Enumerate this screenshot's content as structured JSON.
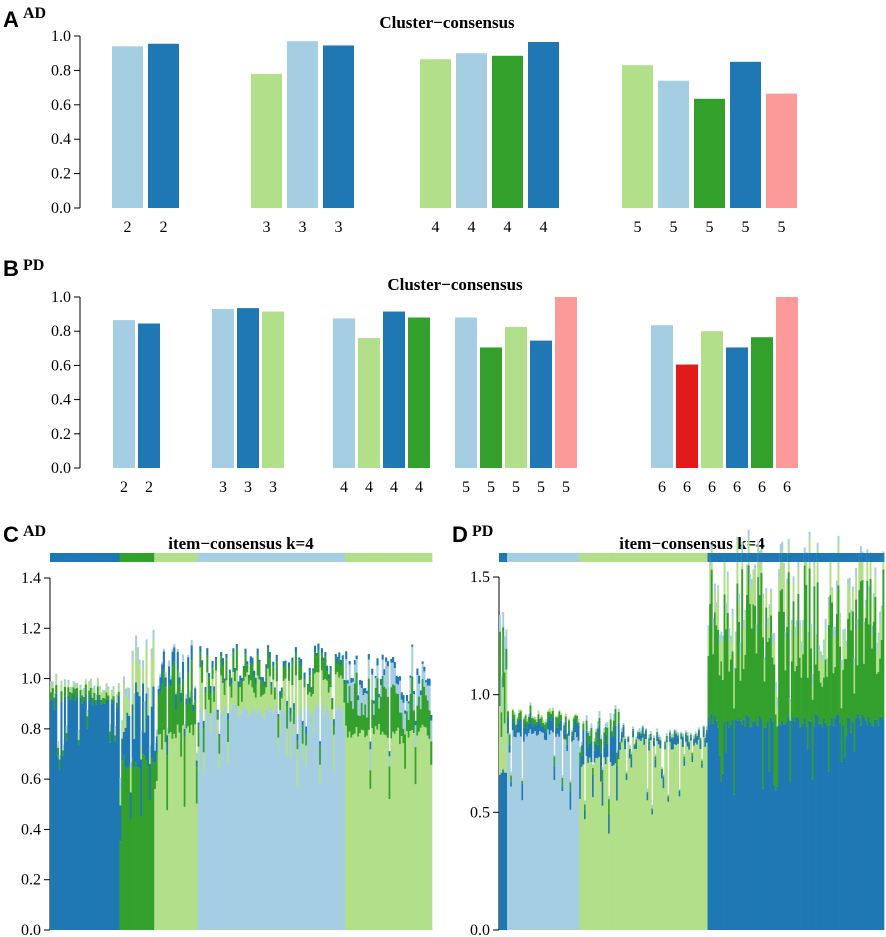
{
  "colors": {
    "light_blue": "#a6cee3",
    "dark_blue": "#1f78b4",
    "light_green": "#b2df8a",
    "dark_green": "#33a02c",
    "pink": "#fb9a99",
    "red": "#e31a1c",
    "axis": "#000000"
  },
  "panels": {
    "A": {
      "letter": "A",
      "subtitle": "AD"
    },
    "B": {
      "letter": "B",
      "subtitle": "PD"
    },
    "C": {
      "letter": "C",
      "subtitle": "AD"
    },
    "D": {
      "letter": "D",
      "subtitle": "PD"
    }
  },
  "chart_data": [
    {
      "id": "A",
      "type": "bar",
      "title": "Cluster−consensus",
      "ylim": [
        0,
        1
      ],
      "yticks": [
        "0.0",
        "0.2",
        "0.4",
        "0.6",
        "0.8",
        "1.0"
      ],
      "groups": [
        {
          "k": "2",
          "bars": [
            {
              "label": "2",
              "value": 0.94,
              "color": "light_blue"
            },
            {
              "label": "2",
              "value": 0.955,
              "color": "dark_blue"
            }
          ]
        },
        {
          "k": "3",
          "bars": [
            {
              "label": "3",
              "value": 0.78,
              "color": "light_green"
            },
            {
              "label": "3",
              "value": 0.97,
              "color": "light_blue"
            },
            {
              "label": "3",
              "value": 0.945,
              "color": "dark_blue"
            }
          ]
        },
        {
          "k": "4",
          "bars": [
            {
              "label": "4",
              "value": 0.865,
              "color": "light_green"
            },
            {
              "label": "4",
              "value": 0.9,
              "color": "light_blue"
            },
            {
              "label": "4",
              "value": 0.885,
              "color": "dark_green"
            },
            {
              "label": "4",
              "value": 0.965,
              "color": "dark_blue"
            }
          ]
        },
        {
          "k": "5",
          "bars": [
            {
              "label": "5",
              "value": 0.83,
              "color": "light_green"
            },
            {
              "label": "5",
              "value": 0.74,
              "color": "light_blue"
            },
            {
              "label": "5",
              "value": 0.635,
              "color": "dark_green"
            },
            {
              "label": "5",
              "value": 0.85,
              "color": "dark_blue"
            },
            {
              "label": "5",
              "value": 0.665,
              "color": "pink"
            }
          ]
        }
      ]
    },
    {
      "id": "B",
      "type": "bar",
      "title": "Cluster−consensus",
      "ylim": [
        0,
        1
      ],
      "yticks": [
        "0.0",
        "0.2",
        "0.4",
        "0.6",
        "0.8",
        "1.0"
      ],
      "groups": [
        {
          "k": "2",
          "bars": [
            {
              "label": "2",
              "value": 0.865,
              "color": "light_blue"
            },
            {
              "label": "2",
              "value": 0.845,
              "color": "dark_blue"
            }
          ]
        },
        {
          "k": "3",
          "bars": [
            {
              "label": "3",
              "value": 0.93,
              "color": "light_blue"
            },
            {
              "label": "3",
              "value": 0.935,
              "color": "dark_blue"
            },
            {
              "label": "3",
              "value": 0.915,
              "color": "light_green"
            }
          ]
        },
        {
          "k": "4",
          "bars": [
            {
              "label": "4",
              "value": 0.875,
              "color": "light_blue"
            },
            {
              "label": "4",
              "value": 0.76,
              "color": "light_green"
            },
            {
              "label": "4",
              "value": 0.915,
              "color": "dark_blue"
            },
            {
              "label": "4",
              "value": 0.88,
              "color": "dark_green"
            }
          ]
        },
        {
          "k": "5",
          "bars": [
            {
              "label": "5",
              "value": 0.88,
              "color": "light_blue"
            },
            {
              "label": "5",
              "value": 0.705,
              "color": "dark_green"
            },
            {
              "label": "5",
              "value": 0.825,
              "color": "light_green"
            },
            {
              "label": "5",
              "value": 0.745,
              "color": "dark_blue"
            },
            {
              "label": "5",
              "value": 1.0,
              "color": "pink"
            }
          ]
        },
        {
          "k": "6",
          "bars": [
            {
              "label": "6",
              "value": 0.835,
              "color": "light_blue"
            },
            {
              "label": "6",
              "value": 0.605,
              "color": "red"
            },
            {
              "label": "6",
              "value": 0.8,
              "color": "light_green"
            },
            {
              "label": "6",
              "value": 0.705,
              "color": "dark_blue"
            },
            {
              "label": "6",
              "value": 0.765,
              "color": "dark_green"
            },
            {
              "label": "6",
              "value": 1.0,
              "color": "pink"
            }
          ]
        }
      ]
    },
    {
      "id": "C",
      "type": "area",
      "title": "item−consensus k=4",
      "ylim": [
        0,
        1.4
      ],
      "yticks": [
        "0.0",
        "0.2",
        "0.4",
        "0.6",
        "0.8",
        "1.0",
        "1.2",
        "1.4"
      ],
      "n_items": 220,
      "legend_bar": "cluster membership strip per item",
      "segments": [
        {
          "from": 0,
          "to": 40,
          "order": [
            "dark_blue",
            "dark_green",
            "light_green",
            "light_blue"
          ],
          "base": [
            0.95,
            0.03,
            0.02,
            0.01
          ]
        },
        {
          "from": 40,
          "to": 60,
          "order": [
            "dark_green",
            "dark_blue",
            "light_green",
            "light_blue"
          ],
          "base": [
            0.7,
            0.2,
            0.12,
            0.04
          ]
        },
        {
          "from": 60,
          "to": 85,
          "order": [
            "light_green",
            "dark_green",
            "dark_blue",
            "light_blue"
          ],
          "base": [
            0.82,
            0.18,
            0.05,
            0.02
          ]
        },
        {
          "from": 85,
          "to": 170,
          "order": [
            "light_blue",
            "light_green",
            "dark_green",
            "dark_blue"
          ],
          "base": [
            0.9,
            0.1,
            0.06,
            0.02
          ]
        },
        {
          "from": 170,
          "to": 220,
          "order": [
            "light_green",
            "dark_green",
            "light_blue",
            "dark_blue"
          ],
          "base": [
            0.82,
            0.14,
            0.08,
            0.02
          ]
        }
      ]
    },
    {
      "id": "D",
      "type": "area",
      "title": "item−consensus k=4",
      "ylim": [
        0,
        1.5
      ],
      "yticks": [
        "0.0",
        "0.5",
        "1.0",
        "1.5"
      ],
      "n_items": 240,
      "legend_bar": "cluster membership strip per item",
      "segments": [
        {
          "from": 0,
          "to": 5,
          "order": [
            "dark_blue",
            "light_green",
            "dark_green",
            "light_blue"
          ],
          "base": [
            0.7,
            0.3,
            0.2,
            0.1
          ]
        },
        {
          "from": 5,
          "to": 50,
          "order": [
            "light_blue",
            "dark_blue",
            "dark_green",
            "light_green"
          ],
          "base": [
            0.86,
            0.05,
            0.03,
            0.01
          ]
        },
        {
          "from": 50,
          "to": 75,
          "order": [
            "light_green",
            "dark_blue",
            "dark_green",
            "light_blue"
          ],
          "base": [
            0.75,
            0.1,
            0.05,
            0.02
          ]
        },
        {
          "from": 75,
          "to": 130,
          "order": [
            "light_green",
            "dark_blue",
            "dark_green",
            "light_blue"
          ],
          "base": [
            0.82,
            0.03,
            0.01,
            0.01
          ]
        },
        {
          "from": 130,
          "to": 240,
          "order": [
            "dark_blue",
            "dark_green",
            "light_green",
            "light_blue"
          ],
          "base": [
            0.92,
            0.42,
            0.12,
            0.03
          ]
        }
      ]
    }
  ]
}
